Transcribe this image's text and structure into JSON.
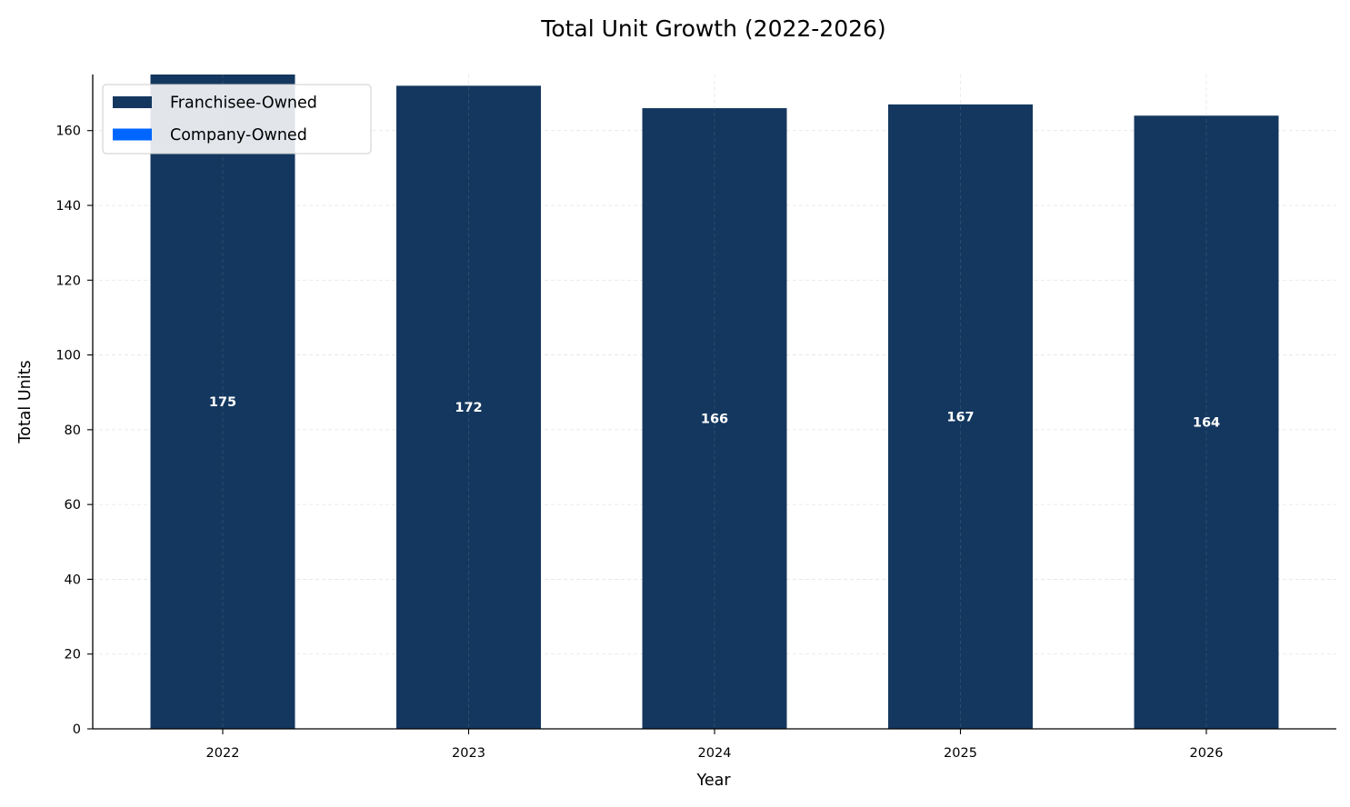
{
  "chart_data": {
    "type": "bar",
    "stacked": true,
    "title": "Total Unit Growth (2022-2026)",
    "xlabel": "Year",
    "ylabel": "Total Units",
    "categories": [
      "2022",
      "2023",
      "2024",
      "2025",
      "2026"
    ],
    "series": [
      {
        "name": "Franchisee-Owned",
        "color": "#14375f",
        "values": [
          175,
          172,
          166,
          167,
          164
        ]
      },
      {
        "name": "Company-Owned",
        "color": "#0066ff",
        "values": [
          0,
          0,
          0,
          0,
          0
        ]
      }
    ],
    "totals": [
      "175",
      "172",
      "166",
      "167",
      "164"
    ],
    "ylim": [
      0,
      175
    ],
    "yticks": [
      0,
      20,
      40,
      60,
      80,
      100,
      120,
      140,
      160
    ],
    "grid": true,
    "legend_position": "top-left"
  }
}
